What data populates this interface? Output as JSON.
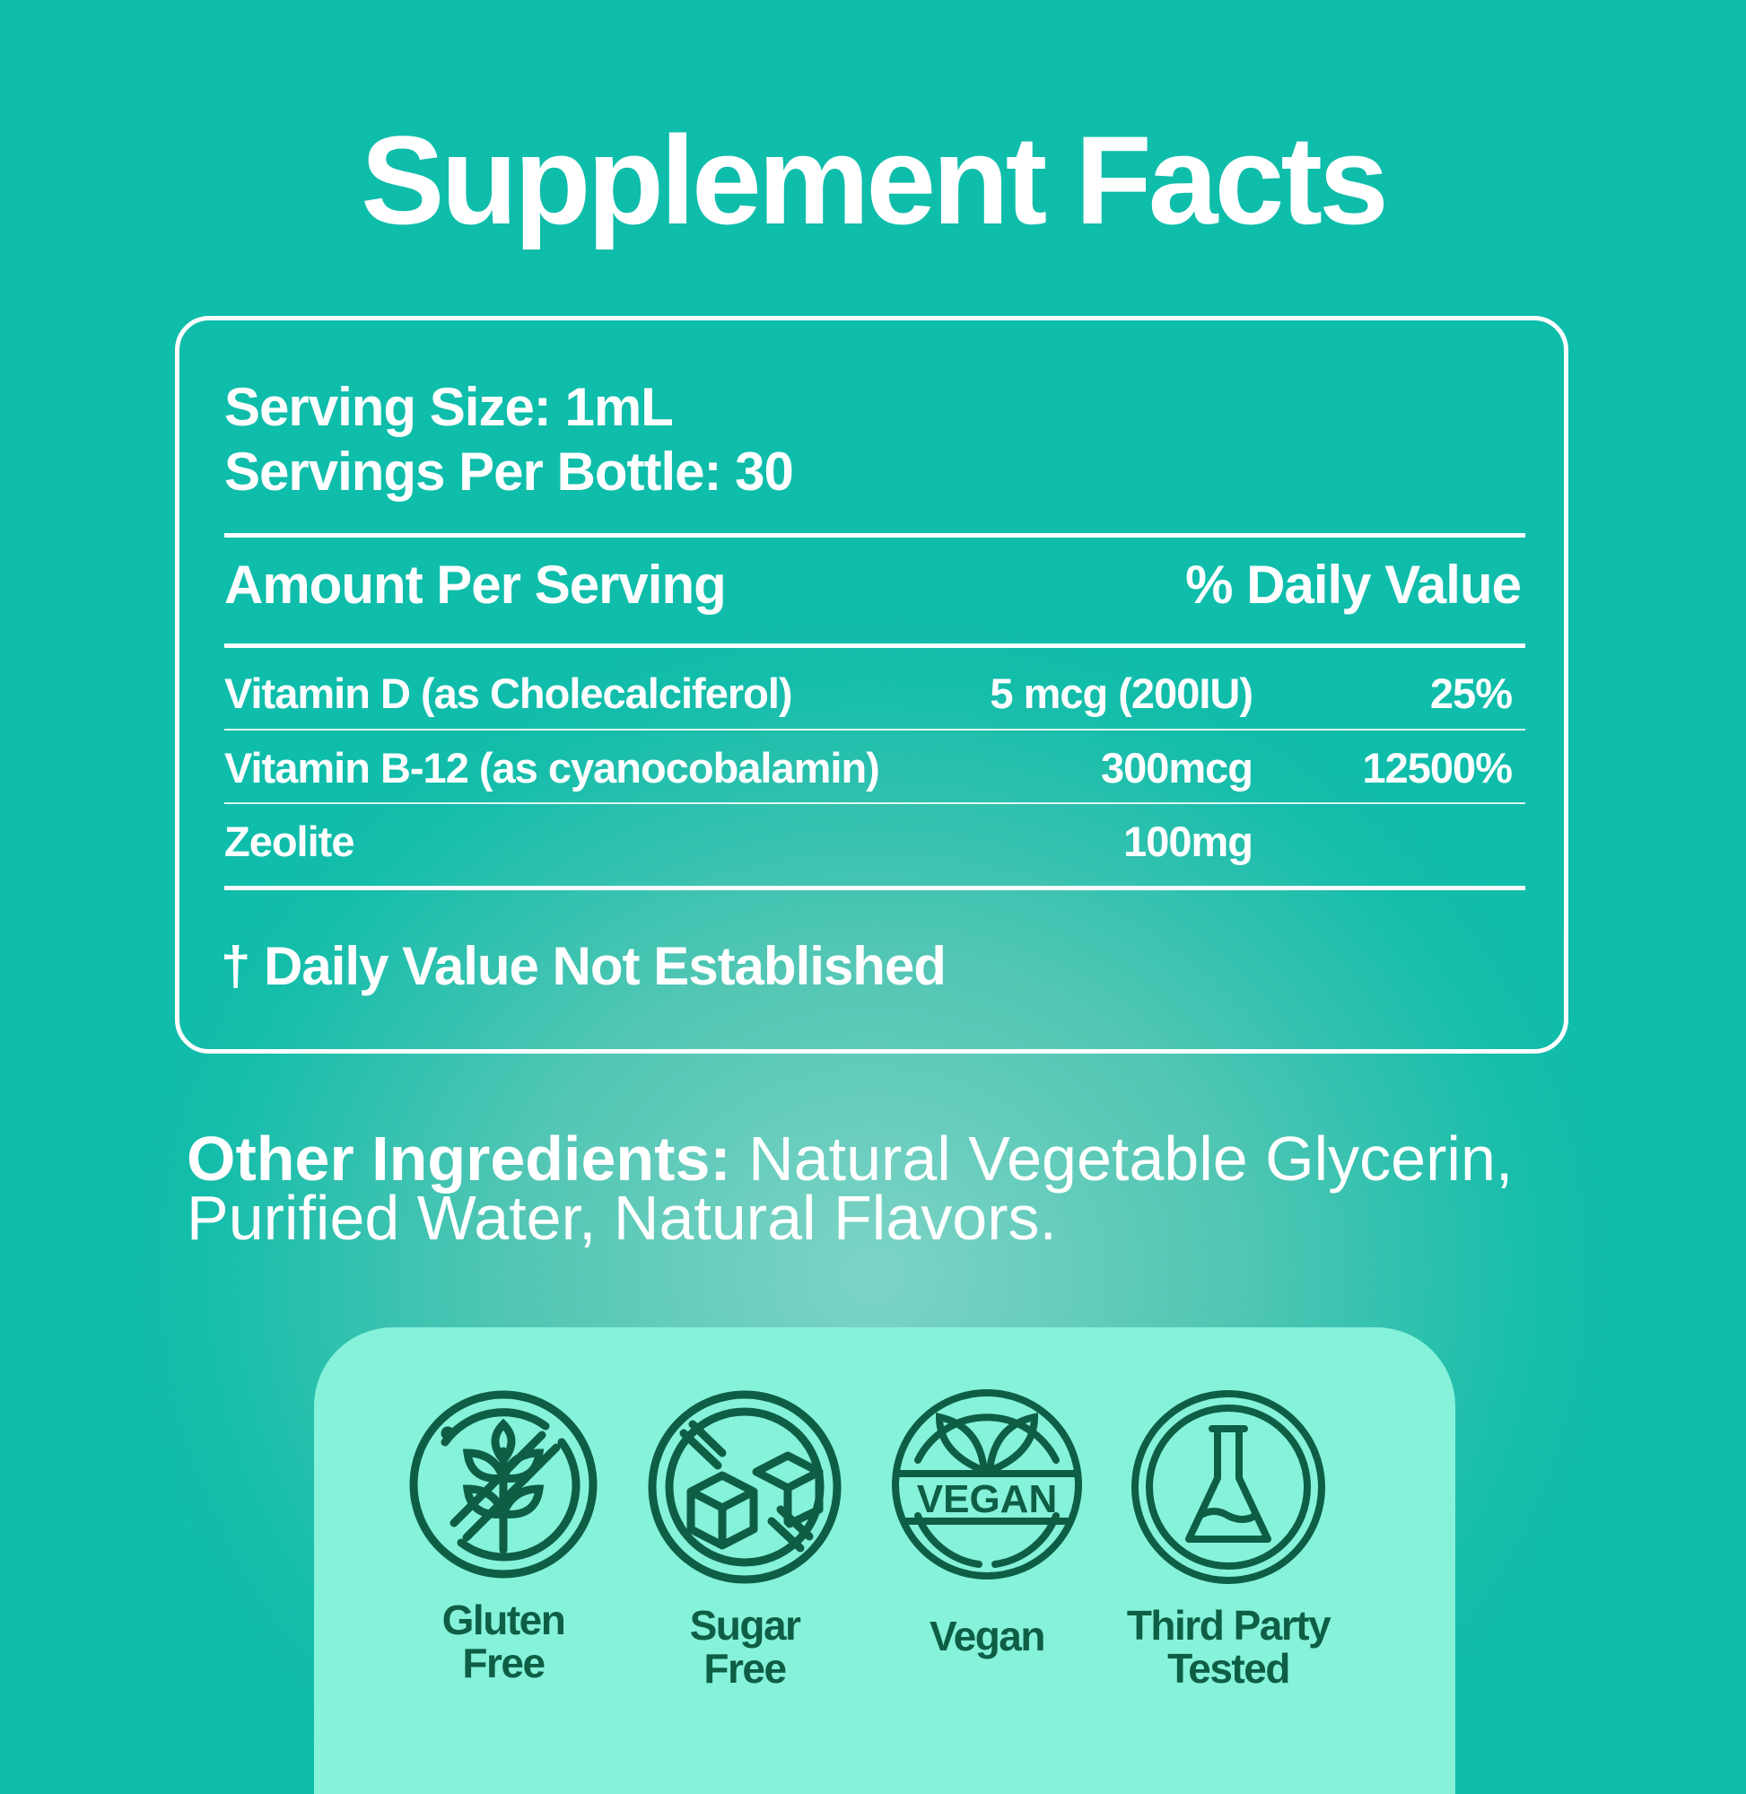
{
  "title": "Supplement Facts",
  "facts": {
    "serving_size": "Serving Size: 1mL",
    "servings_per_bottle": "Servings Per Bottle: 30",
    "header_amount": "Amount Per Serving",
    "header_dv": "% Daily Value",
    "rows": [
      {
        "name": "Vitamin D (as Cholecalciferol)",
        "amount": "5 mcg (200IU)",
        "dv": "25%"
      },
      {
        "name": "Vitamin B-12 (as cyanocobalamin)",
        "amount": "300mcg",
        "dv": "12500%"
      },
      {
        "name": "Zeolite",
        "amount": "100mg",
        "dv": ""
      }
    ],
    "footnote": "† Daily Value Not Established"
  },
  "other_ingredients": {
    "label": "Other Ingredients:",
    "text": " Natural Vegetable Glycerin, Purified Water, Natural Flavors."
  },
  "badges": [
    {
      "icon": "gluten-free-icon",
      "line1": "Gluten",
      "line2": "Free"
    },
    {
      "icon": "sugar-free-icon",
      "line1": "Sugar",
      "line2": "Free"
    },
    {
      "icon": "vegan-icon",
      "line1": "Vegan",
      "line2": "",
      "emblem": "VEGAN"
    },
    {
      "icon": "third-party-tested-icon",
      "line1": "Third Party",
      "line2": "Tested"
    }
  ],
  "colors": {
    "background": "#10bdab",
    "panel": "#86f2da",
    "icon": "#0e5e45",
    "text": "#ffffff"
  }
}
